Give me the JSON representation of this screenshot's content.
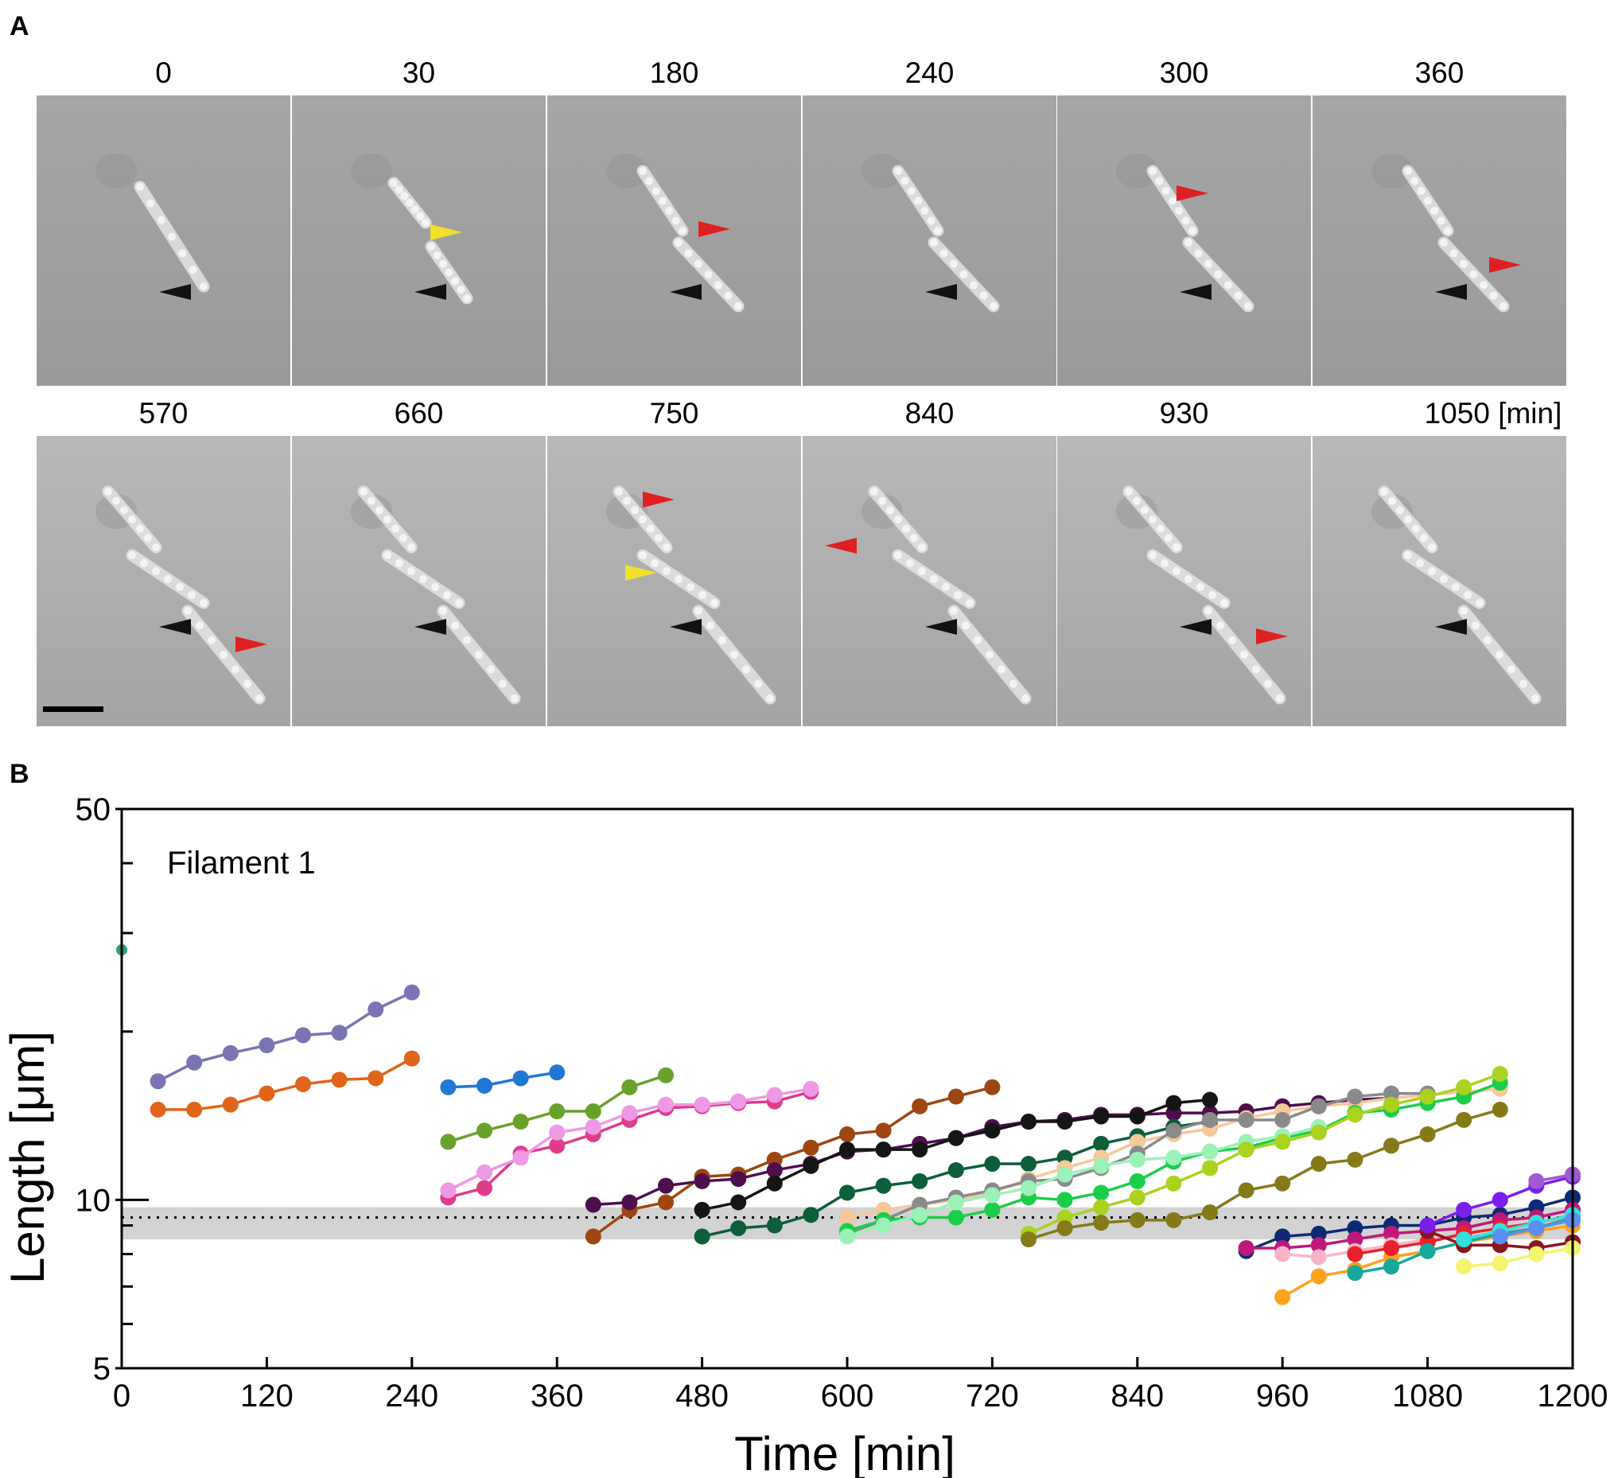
{
  "panel_a": {
    "letter": "A",
    "frames": [
      {
        "label": "0",
        "row": 0,
        "col": 0,
        "black": true,
        "red": false,
        "yellow": false
      },
      {
        "label": "30",
        "row": 0,
        "col": 1,
        "black": true,
        "red": false,
        "yellow": true
      },
      {
        "label": "180",
        "row": 0,
        "col": 2,
        "black": true,
        "red": true,
        "yellow": false
      },
      {
        "label": "240",
        "row": 0,
        "col": 3,
        "black": true,
        "red": false,
        "yellow": false
      },
      {
        "label": "300",
        "row": 0,
        "col": 4,
        "black": true,
        "red": true,
        "yellow": false
      },
      {
        "label": "360",
        "row": 0,
        "col": 5,
        "black": true,
        "red": true,
        "yellow": false
      },
      {
        "label": "570",
        "row": 1,
        "col": 0,
        "black": true,
        "red": true,
        "yellow": false
      },
      {
        "label": "660",
        "row": 1,
        "col": 1,
        "black": true,
        "red": false,
        "yellow": false
      },
      {
        "label": "750",
        "row": 1,
        "col": 2,
        "black": true,
        "red": true,
        "yellow": true
      },
      {
        "label": "840",
        "row": 1,
        "col": 3,
        "black": true,
        "red": true,
        "yellow": false
      },
      {
        "label": "930",
        "row": 1,
        "col": 4,
        "black": true,
        "red": true,
        "yellow": false
      },
      {
        "label": "1050 [min]",
        "row": 1,
        "col": 5,
        "black": true,
        "red": false,
        "yellow": false
      }
    ],
    "arrow_colors": {
      "black": "#111111",
      "red": "#e02020",
      "yellow": "#f2e02a"
    }
  },
  "chart_data": {
    "type": "line",
    "panel_letter": "B",
    "annotation": "Filament 1",
    "xlabel": "Time [min]",
    "ylabel": "Length [μm]",
    "yscale": "log",
    "xlim": [
      0,
      1200
    ],
    "ylim": [
      5,
      50
    ],
    "xticks": [
      0,
      120,
      240,
      360,
      480,
      600,
      720,
      840,
      960,
      1080,
      1200
    ],
    "yticks_labeled": [
      5,
      10,
      50
    ],
    "yticks_minor": [
      6,
      7,
      8,
      9,
      20,
      30,
      40
    ],
    "reference_line": 9.3,
    "reference_band": [
      8.5,
      9.7
    ],
    "grid": false,
    "series": [
      {
        "name": "s0",
        "color": "#2aa07a",
        "x": [
          0
        ],
        "y": [
          28
        ]
      },
      {
        "name": "s1",
        "color": "#7b74b4",
        "x": [
          30,
          60,
          90,
          120,
          150,
          180,
          210,
          240
        ],
        "y": [
          16.3,
          17.6,
          18.3,
          18.9,
          19.7,
          19.9,
          21.9,
          23.5
        ]
      },
      {
        "name": "s2",
        "color": "#e0651b",
        "x": [
          30,
          60,
          90,
          120,
          150,
          180,
          210,
          240
        ],
        "y": [
          14.5,
          14.5,
          14.8,
          15.5,
          16.1,
          16.4,
          16.5,
          17.9
        ]
      },
      {
        "name": "s3",
        "color": "#1f78d2",
        "x": [
          270,
          300,
          330,
          360
        ],
        "y": [
          15.9,
          16.0,
          16.5,
          16.9
        ]
      },
      {
        "name": "s4",
        "color": "#6aa12a",
        "x": [
          270,
          300,
          330,
          360,
          390,
          420,
          450
        ],
        "y": [
          12.7,
          13.3,
          13.8,
          14.4,
          14.4,
          15.9,
          16.7
        ]
      },
      {
        "name": "s5",
        "color": "#df3c8a",
        "x": [
          270,
          300,
          330,
          360,
          390,
          420,
          450,
          480,
          510,
          540,
          570
        ],
        "y": [
          10.1,
          10.5,
          12.1,
          12.5,
          13.1,
          13.9,
          14.6,
          14.7,
          14.9,
          15.0,
          15.6
        ]
      },
      {
        "name": "s6",
        "color": "#ef98e6",
        "x": [
          270,
          300,
          330,
          360,
          390,
          420,
          450,
          480,
          510,
          540,
          570
        ],
        "y": [
          10.4,
          11.2,
          11.9,
          13.2,
          13.5,
          14.3,
          14.8,
          14.8,
          15.0,
          15.4,
          15.8
        ]
      },
      {
        "name": "s7",
        "color": "#9e4612",
        "x": [
          390,
          420,
          450,
          480,
          510,
          540,
          570,
          600,
          630,
          660,
          690,
          720
        ],
        "y": [
          8.6,
          9.6,
          9.9,
          11.0,
          11.1,
          11.8,
          12.4,
          13.1,
          13.3,
          14.7,
          15.3,
          15.9
        ]
      },
      {
        "name": "s8",
        "color": "#4e0e4c",
        "x": [
          390,
          420,
          450,
          480,
          510,
          540,
          570,
          600,
          630,
          660,
          690,
          720,
          750,
          780,
          810,
          840,
          870,
          900,
          930,
          960,
          990,
          1020,
          1050
        ],
        "y": [
          9.8,
          9.9,
          10.6,
          10.8,
          10.9,
          11.3,
          11.6,
          12.2,
          12.3,
          12.6,
          12.9,
          13.5,
          13.8,
          13.9,
          14.2,
          14.2,
          14.3,
          14.3,
          14.4,
          14.7,
          14.9,
          15.1,
          15.2
        ]
      },
      {
        "name": "s9",
        "color": "#151515",
        "x": [
          480,
          510,
          540,
          570,
          600,
          630,
          660,
          690,
          720,
          750,
          780,
          810,
          840,
          870,
          900
        ],
        "y": [
          9.6,
          9.9,
          10.7,
          11.5,
          12.3,
          12.3,
          12.3,
          12.9,
          13.3,
          13.8,
          13.8,
          14.1,
          14.1,
          14.9,
          15.1
        ]
      },
      {
        "name": "s10",
        "color": "#0d5e3a",
        "x": [
          480,
          510,
          540,
          570,
          600,
          630,
          660,
          690,
          720,
          750,
          780,
          810,
          840,
          870,
          900
        ],
        "y": [
          8.6,
          8.9,
          9.0,
          9.4,
          10.3,
          10.6,
          10.8,
          11.3,
          11.6,
          11.6,
          11.9,
          12.6,
          13.0,
          13.5,
          13.8
        ]
      },
      {
        "name": "s11",
        "color": "#f7c89a",
        "x": [
          600,
          630,
          660,
          690,
          720,
          750,
          780,
          810,
          840,
          870,
          900,
          930,
          960,
          990,
          1020,
          1050,
          1080,
          1110,
          1140
        ],
        "y": [
          9.3,
          9.6,
          9.8,
          10.0,
          10.3,
          10.9,
          11.4,
          11.9,
          12.7,
          13.1,
          13.4,
          14.0,
          14.4,
          14.7,
          14.9,
          15.2,
          15.4,
          15.6,
          15.8
        ]
      },
      {
        "name": "s12",
        "color": "#8a8a8a",
        "x": [
          600,
          630,
          660,
          690,
          720,
          750,
          780,
          810,
          840,
          870,
          900,
          930,
          960,
          990,
          1020,
          1050,
          1080
        ],
        "y": [
          8.7,
          9.2,
          9.8,
          10.1,
          10.4,
          10.8,
          10.9,
          11.4,
          12.1,
          13.3,
          13.9,
          13.9,
          13.9,
          14.7,
          15.3,
          15.5,
          15.5
        ]
      },
      {
        "name": "s13",
        "color": "#1ccd4a",
        "x": [
          600,
          630,
          660,
          690,
          720,
          750,
          780,
          810,
          840,
          870,
          900,
          930,
          960,
          990,
          1020,
          1050,
          1080,
          1110,
          1140
        ],
        "y": [
          8.8,
          9.2,
          9.3,
          9.3,
          9.6,
          10.1,
          10.0,
          10.3,
          10.8,
          11.7,
          12.2,
          12.4,
          12.9,
          13.3,
          14.3,
          14.5,
          14.9,
          15.3,
          16.2
        ]
      },
      {
        "name": "s14",
        "color": "#9bf2b8",
        "x": [
          600,
          630,
          660,
          690,
          720,
          750,
          780,
          810,
          840,
          870,
          900,
          930,
          960,
          990
        ],
        "y": [
          8.6,
          9.0,
          9.4,
          9.9,
          10.2,
          10.5,
          11.1,
          11.5,
          11.8,
          11.9,
          12.2,
          12.7,
          13.0,
          13.5
        ]
      },
      {
        "name": "s15",
        "color": "#aad21f",
        "x": [
          750,
          780,
          810,
          840,
          870,
          900,
          930,
          960,
          990,
          1020,
          1050,
          1080,
          1110,
          1140
        ],
        "y": [
          8.7,
          9.3,
          9.7,
          10.1,
          10.7,
          11.4,
          12.3,
          12.7,
          13.2,
          14.2,
          14.8,
          15.3,
          15.9,
          16.8
        ]
      },
      {
        "name": "s16",
        "color": "#857a18",
        "x": [
          750,
          780,
          810,
          840,
          870,
          900,
          930,
          960,
          990,
          1020,
          1050,
          1080,
          1110,
          1140
        ],
        "y": [
          8.5,
          8.9,
          9.1,
          9.2,
          9.2,
          9.5,
          10.4,
          10.7,
          11.6,
          11.8,
          12.5,
          13.1,
          13.9,
          14.5
        ]
      },
      {
        "name": "s17",
        "color": "#0e2a74",
        "x": [
          930,
          960,
          990,
          1020,
          1050,
          1080,
          1110,
          1140,
          1170,
          1200
        ],
        "y": [
          8.1,
          8.6,
          8.7,
          8.9,
          9.0,
          9.0,
          9.3,
          9.4,
          9.7,
          10.1
        ]
      },
      {
        "name": "s18",
        "color": "#c0187a",
        "x": [
          930,
          960,
          990,
          1020,
          1050,
          1080,
          1110,
          1140,
          1170,
          1200
        ],
        "y": [
          8.2,
          8.2,
          8.3,
          8.5,
          8.7,
          8.8,
          8.9,
          9.2,
          9.3,
          9.6
        ]
      },
      {
        "name": "s19",
        "color": "#f9b4c8",
        "x": [
          960,
          990,
          1020,
          1050,
          1080,
          1110,
          1140,
          1170,
          1200
        ],
        "y": [
          8.0,
          7.9,
          8.1,
          8.3,
          8.5,
          8.6,
          8.7,
          9.0,
          9.3
        ]
      },
      {
        "name": "s20",
        "color": "#ffa21e",
        "x": [
          960,
          990,
          1020,
          1050,
          1080,
          1110,
          1140,
          1170,
          1200
        ],
        "y": [
          6.7,
          7.3,
          7.5,
          7.9,
          8.1,
          8.4,
          8.6,
          8.8,
          9.0
        ]
      },
      {
        "name": "s21",
        "color": "#e8212c",
        "x": [
          1020,
          1050,
          1080,
          1110,
          1140,
          1170,
          1200
        ],
        "y": [
          8.0,
          8.2,
          8.4,
          8.7,
          8.9,
          9.1,
          9.4
        ]
      },
      {
        "name": "s22",
        "color": "#16a89a",
        "x": [
          1020,
          1050,
          1080,
          1110,
          1140,
          1170,
          1200
        ],
        "y": [
          7.4,
          7.6,
          8.1,
          8.4,
          8.7,
          8.9,
          9.3
        ]
      },
      {
        "name": "s23",
        "color": "#8a1520",
        "x": [
          1080,
          1110,
          1140,
          1170,
          1200
        ],
        "y": [
          8.8,
          8.3,
          8.3,
          8.2,
          8.4
        ]
      },
      {
        "name": "s24",
        "color": "#7a1ef0",
        "x": [
          1080,
          1110,
          1140,
          1170,
          1200
        ],
        "y": [
          9.0,
          9.6,
          10.0,
          10.6,
          11.0
        ]
      },
      {
        "name": "s25",
        "color": "#f4f46e",
        "x": [
          1110,
          1140,
          1170,
          1200
        ],
        "y": [
          7.6,
          7.7,
          8.0,
          8.2
        ]
      },
      {
        "name": "s26",
        "color": "#33e0e0",
        "x": [
          1110,
          1140,
          1170,
          1200
        ],
        "y": [
          8.5,
          8.8,
          9.1,
          9.4
        ]
      },
      {
        "name": "s27",
        "color": "#5a8ef0",
        "x": [
          1140,
          1170,
          1200
        ],
        "y": [
          8.6,
          8.9,
          9.2
        ]
      },
      {
        "name": "s28",
        "color": "#a05ad2",
        "x": [
          1170,
          1200
        ],
        "y": [
          10.8,
          11.1
        ]
      }
    ]
  }
}
